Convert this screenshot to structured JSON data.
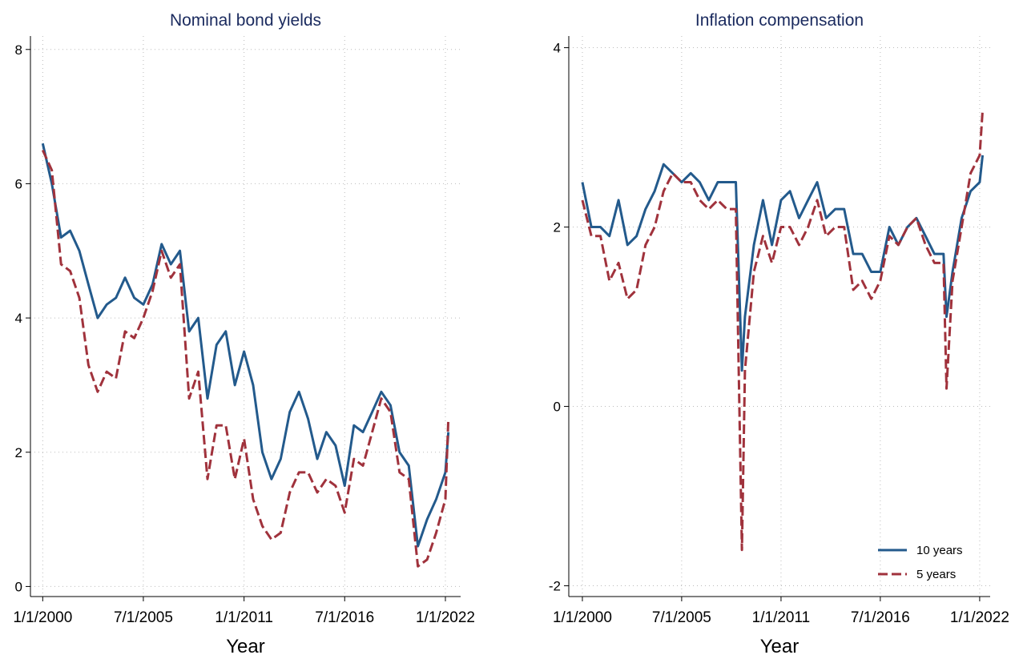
{
  "chart_data": [
    {
      "type": "line",
      "title": "Nominal bond yields",
      "x_label": "Year",
      "x": [
        "2000-01-01",
        "2000-07-01",
        "2001-01-01",
        "2001-07-01",
        "2002-01-01",
        "2002-07-01",
        "2003-01-01",
        "2003-07-01",
        "2004-01-01",
        "2004-07-01",
        "2005-01-01",
        "2005-07-01",
        "2006-01-01",
        "2006-07-01",
        "2007-01-01",
        "2007-07-01",
        "2008-01-01",
        "2008-07-01",
        "2009-01-01",
        "2009-07-01",
        "2010-01-01",
        "2010-07-01",
        "2011-01-01",
        "2011-07-01",
        "2012-01-01",
        "2012-07-01",
        "2013-01-01",
        "2013-07-01",
        "2014-01-01",
        "2014-07-01",
        "2015-01-01",
        "2015-07-01",
        "2016-01-01",
        "2016-07-01",
        "2017-01-01",
        "2017-07-01",
        "2018-01-01",
        "2018-07-01",
        "2019-01-01",
        "2019-07-01",
        "2020-01-01",
        "2020-07-01",
        "2021-01-01",
        "2021-07-01",
        "2022-01-01",
        "2022-03-01"
      ],
      "series": [
        {
          "name": "10 years",
          "color": "#235a8c",
          "linestyle": "solid",
          "values": [
            6.6,
            6.0,
            5.2,
            5.3,
            5.0,
            4.5,
            4.0,
            4.2,
            4.3,
            4.6,
            4.3,
            4.2,
            4.5,
            5.1,
            4.8,
            5.0,
            3.8,
            4.0,
            2.8,
            3.6,
            3.8,
            3.0,
            3.5,
            3.0,
            2.0,
            1.6,
            1.9,
            2.6,
            2.9,
            2.5,
            1.9,
            2.3,
            2.1,
            1.5,
            2.4,
            2.3,
            2.6,
            2.9,
            2.7,
            2.0,
            1.8,
            0.6,
            1.0,
            1.3,
            1.7,
            2.3
          ]
        },
        {
          "name": "5 years",
          "color": "#a0323c",
          "linestyle": "dashed",
          "values": [
            6.5,
            6.2,
            4.8,
            4.7,
            4.3,
            3.3,
            2.9,
            3.2,
            3.1,
            3.8,
            3.7,
            4.0,
            4.4,
            5.0,
            4.6,
            4.8,
            2.8,
            3.2,
            1.6,
            2.4,
            2.4,
            1.6,
            2.2,
            1.3,
            0.9,
            0.7,
            0.8,
            1.4,
            1.7,
            1.7,
            1.4,
            1.6,
            1.5,
            1.1,
            1.9,
            1.8,
            2.3,
            2.8,
            2.6,
            1.7,
            1.6,
            0.3,
            0.4,
            0.8,
            1.3,
            2.5
          ]
        }
      ],
      "xlim": [
        "1999-05-01",
        "2022-11-01"
      ],
      "xticks": [
        {
          "value": "2000-01-01",
          "label": "1/1/2000"
        },
        {
          "value": "2005-07-01",
          "label": "7/1/2005"
        },
        {
          "value": "2011-01-01",
          "label": "1/1/2011"
        },
        {
          "value": "2016-07-01",
          "label": "7/1/2016"
        },
        {
          "value": "2022-01-01",
          "label": "1/1/2022"
        }
      ],
      "ylim": [
        -0.15,
        8.2
      ],
      "yticks": [
        0,
        2,
        4,
        6,
        8
      ],
      "grid": true,
      "legend": false
    },
    {
      "type": "line",
      "title": "Inflation compensation",
      "x_label": "Year",
      "x": [
        "2000-01-01",
        "2000-07-01",
        "2001-01-01",
        "2001-07-01",
        "2002-01-01",
        "2002-07-01",
        "2003-01-01",
        "2003-07-01",
        "2004-01-01",
        "2004-07-01",
        "2005-01-01",
        "2005-07-01",
        "2006-01-01",
        "2006-07-01",
        "2007-01-01",
        "2007-07-01",
        "2008-01-01",
        "2008-07-01",
        "2008-11-01",
        "2009-01-01",
        "2009-07-01",
        "2010-01-01",
        "2010-07-01",
        "2011-01-01",
        "2011-07-01",
        "2012-01-01",
        "2012-07-01",
        "2013-01-01",
        "2013-07-01",
        "2014-01-01",
        "2014-07-01",
        "2015-01-01",
        "2015-07-01",
        "2016-01-01",
        "2016-07-01",
        "2017-01-01",
        "2017-07-01",
        "2018-01-01",
        "2018-07-01",
        "2019-01-01",
        "2019-07-01",
        "2020-01-01",
        "2020-03-01",
        "2020-07-01",
        "2021-01-01",
        "2021-07-01",
        "2022-01-01",
        "2022-03-01"
      ],
      "series": [
        {
          "name": "10 years",
          "color": "#235a8c",
          "linestyle": "solid",
          "values": [
            2.5,
            2.0,
            2.0,
            1.9,
            2.3,
            1.8,
            1.9,
            2.2,
            2.4,
            2.7,
            2.6,
            2.5,
            2.6,
            2.5,
            2.3,
            2.5,
            2.5,
            2.5,
            0.4,
            1.0,
            1.8,
            2.3,
            1.8,
            2.3,
            2.4,
            2.1,
            2.3,
            2.5,
            2.1,
            2.2,
            2.2,
            1.7,
            1.7,
            1.5,
            1.5,
            2.0,
            1.8,
            2.0,
            2.1,
            1.9,
            1.7,
            1.7,
            1.0,
            1.5,
            2.1,
            2.4,
            2.5,
            2.8
          ]
        },
        {
          "name": "5 years",
          "color": "#a0323c",
          "linestyle": "dashed",
          "values": [
            2.3,
            1.9,
            1.9,
            1.4,
            1.6,
            1.2,
            1.3,
            1.8,
            2.0,
            2.4,
            2.6,
            2.5,
            2.5,
            2.3,
            2.2,
            2.3,
            2.2,
            2.2,
            -1.6,
            0.4,
            1.5,
            1.9,
            1.6,
            2.0,
            2.0,
            1.8,
            2.0,
            2.3,
            1.9,
            2.0,
            2.0,
            1.3,
            1.4,
            1.2,
            1.4,
            1.9,
            1.8,
            2.0,
            2.1,
            1.8,
            1.6,
            1.6,
            0.2,
            1.4,
            2.0,
            2.6,
            2.8,
            3.3
          ]
        }
      ],
      "xlim": [
        "1999-04-01",
        "2022-08-01"
      ],
      "xticks": [
        {
          "value": "2000-01-01",
          "label": "1/1/2000"
        },
        {
          "value": "2005-07-01",
          "label": "7/1/2005"
        },
        {
          "value": "2011-01-01",
          "label": "1/1/2011"
        },
        {
          "value": "2016-07-01",
          "label": "7/1/2016"
        },
        {
          "value": "2022-01-01",
          "label": "1/1/2022"
        }
      ],
      "ylim": [
        -2.12,
        4.13
      ],
      "yticks": [
        -2,
        0,
        2,
        4
      ],
      "grid": true,
      "legend": true,
      "legend_position": "lower right"
    }
  ]
}
